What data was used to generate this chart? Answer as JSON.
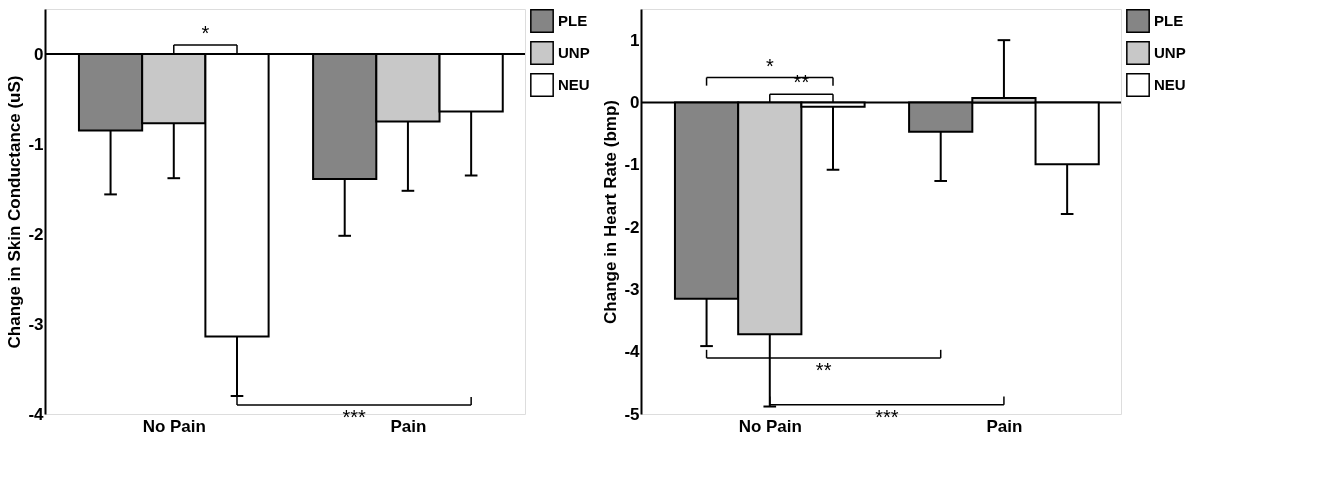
{
  "chart_data": [
    {
      "type": "bar",
      "ylabel": "Change in Skin Conductance (uS)",
      "categories": [
        "No Pain",
        "Pain"
      ],
      "ylim": [
        -4,
        0.5
      ],
      "yticks": [
        -4,
        -3,
        -2,
        -1,
        0
      ],
      "legend": "top right",
      "series": [
        {
          "name": "PLE",
          "color": "#858585",
          "values": [
            -0.85,
            -1.39
          ],
          "errors": [
            [
              -1.56,
              -0.85
            ],
            [
              -2.02,
              -1.39
            ]
          ]
        },
        {
          "name": "UNP",
          "color": "#c8c8c8",
          "values": [
            -0.77,
            -0.75
          ],
          "errors": [
            [
              -1.38,
              -0.77
            ],
            [
              -1.52,
              -0.75
            ]
          ]
        },
        {
          "name": "NEU",
          "color": "#ffffff",
          "values": [
            -3.14,
            -0.64
          ],
          "errors": [
            [
              -3.8,
              -3.14
            ],
            [
              -1.35,
              -0.64
            ]
          ]
        }
      ],
      "annotations": [
        "*",
        "***"
      ]
    },
    {
      "type": "bar",
      "ylabel": "Change in Heart Rate (bmp)",
      "categories": [
        "No Pain",
        "Pain"
      ],
      "ylim": [
        -5,
        1.5
      ],
      "yticks": [
        -5,
        -4,
        -3,
        -2,
        -1,
        0,
        1
      ],
      "legend": "top right",
      "series": [
        {
          "name": "PLE",
          "color": "#858585",
          "values": [
            -3.15,
            -0.47
          ],
          "errors": [
            [
              -3.91,
              -3.15
            ],
            [
              -1.26,
              -0.47
            ]
          ]
        },
        {
          "name": "UNP",
          "color": "#c8c8c8",
          "values": [
            -3.72,
            0.07
          ],
          "errors": [
            [
              -4.88,
              -3.72
            ],
            [
              0.07,
              1.0
            ]
          ]
        },
        {
          "name": "NEU",
          "color": "#ffffff",
          "values": [
            -0.07,
            -0.99
          ],
          "errors": [
            [
              -1.08,
              -0.07
            ],
            [
              -1.79,
              -0.99
            ]
          ]
        }
      ],
      "annotations": [
        "*",
        "**",
        "**",
        "***"
      ]
    }
  ]
}
